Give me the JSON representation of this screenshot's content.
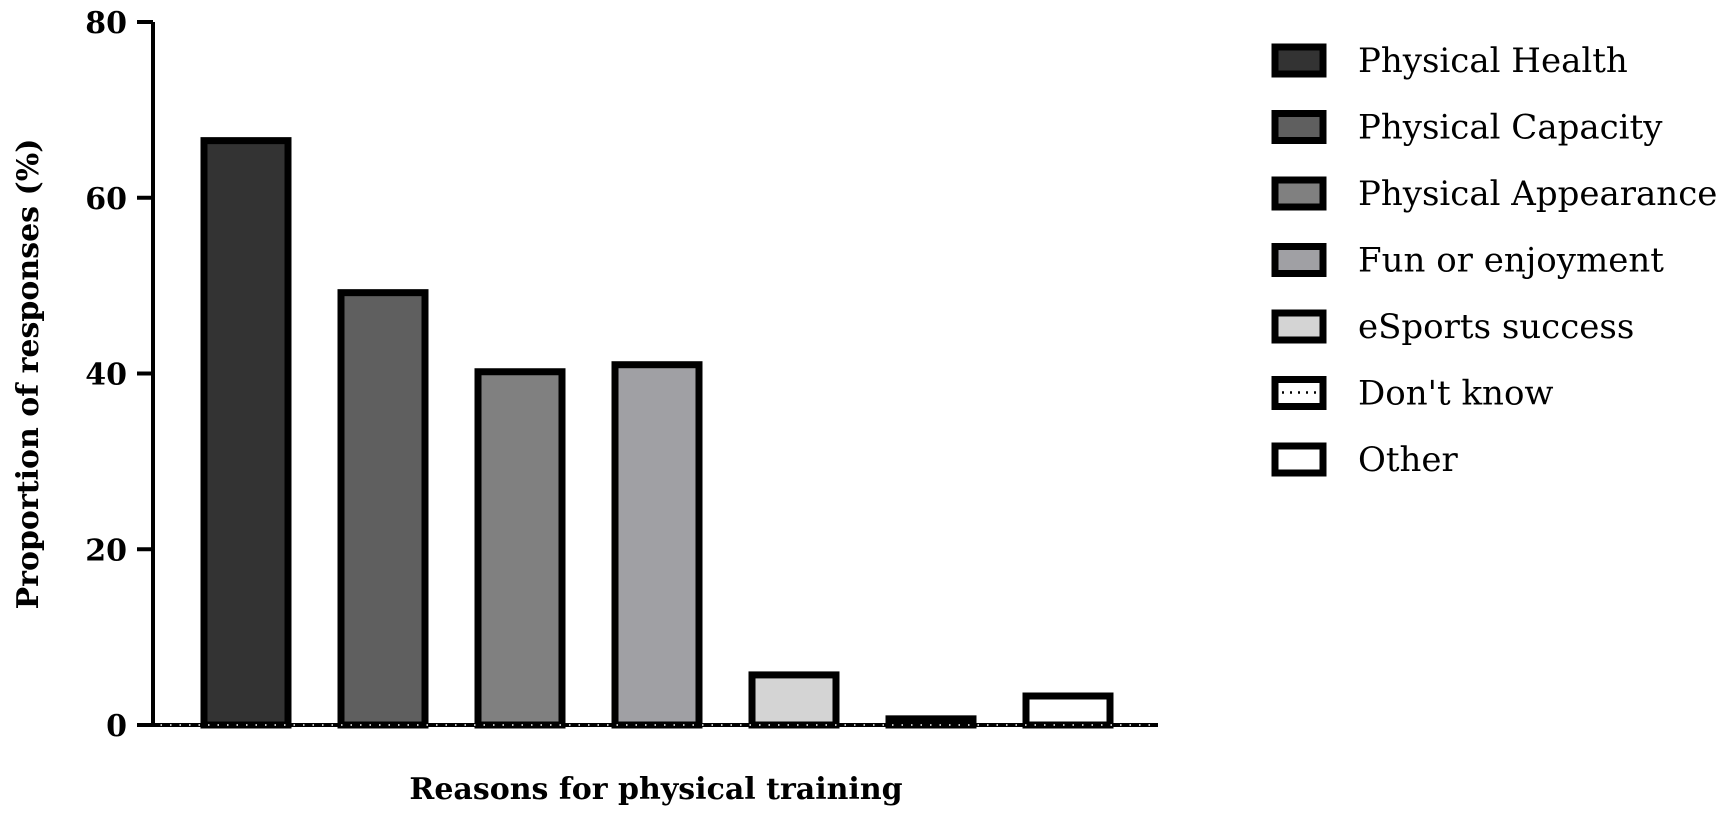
{
  "chart_data": {
    "type": "bar",
    "title": "",
    "xlabel": "Reasons for physical training",
    "ylabel": "Proportion of responses (%)",
    "ylim": [
      0,
      80
    ],
    "yticks": [
      "0",
      "20",
      "40",
      "60",
      "80"
    ],
    "grid": false,
    "legend_position": "right",
    "categories": [
      "Physical Health",
      "Physical Capacity",
      "Physical Appearance",
      "Fun or enjoyment",
      "eSports success",
      "Don't know",
      "Other"
    ],
    "values": [
      66.5,
      49.2,
      40.2,
      41.0,
      5.7,
      0.7,
      3.3
    ],
    "colors": [
      "#333333",
      "#5f5f5f",
      "#808080",
      "#a0a0a4",
      "#d4d4d4",
      "#ffffff",
      "#ffffff"
    ],
    "patterns": [
      "solid",
      "solid",
      "solid",
      "solid",
      "solid",
      "dotted",
      "solid"
    ]
  }
}
